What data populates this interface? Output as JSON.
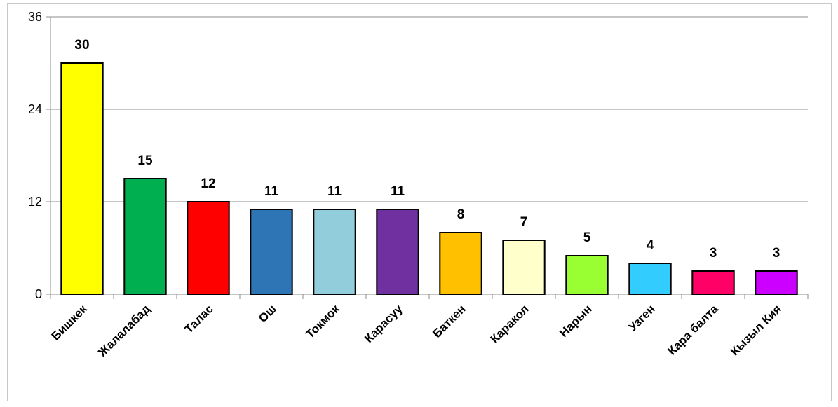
{
  "chart_data": {
    "type": "bar",
    "categories": [
      "Бишкек",
      "Жалалабад",
      "Талас",
      "Ош",
      "Токмок",
      "Карасуу",
      "Баткен",
      "Каракол",
      "Нарын",
      "Узген",
      "Кара балта",
      "Кызыл Кия"
    ],
    "values": [
      30,
      15,
      12,
      11,
      11,
      11,
      8,
      7,
      5,
      4,
      3,
      3
    ],
    "colors": [
      "#ffff00",
      "#00b050",
      "#ff0000",
      "#2e75b6",
      "#92cddc",
      "#7030a0",
      "#ffc000",
      "#ffffcc",
      "#99ff33",
      "#33ccff",
      "#ff0066",
      "#cc00ff"
    ],
    "ylim": [
      0,
      36
    ],
    "yticks": [
      0,
      12,
      24,
      36
    ],
    "grid": true,
    "legend": "none",
    "title": "",
    "xlabel": "",
    "ylabel": ""
  }
}
